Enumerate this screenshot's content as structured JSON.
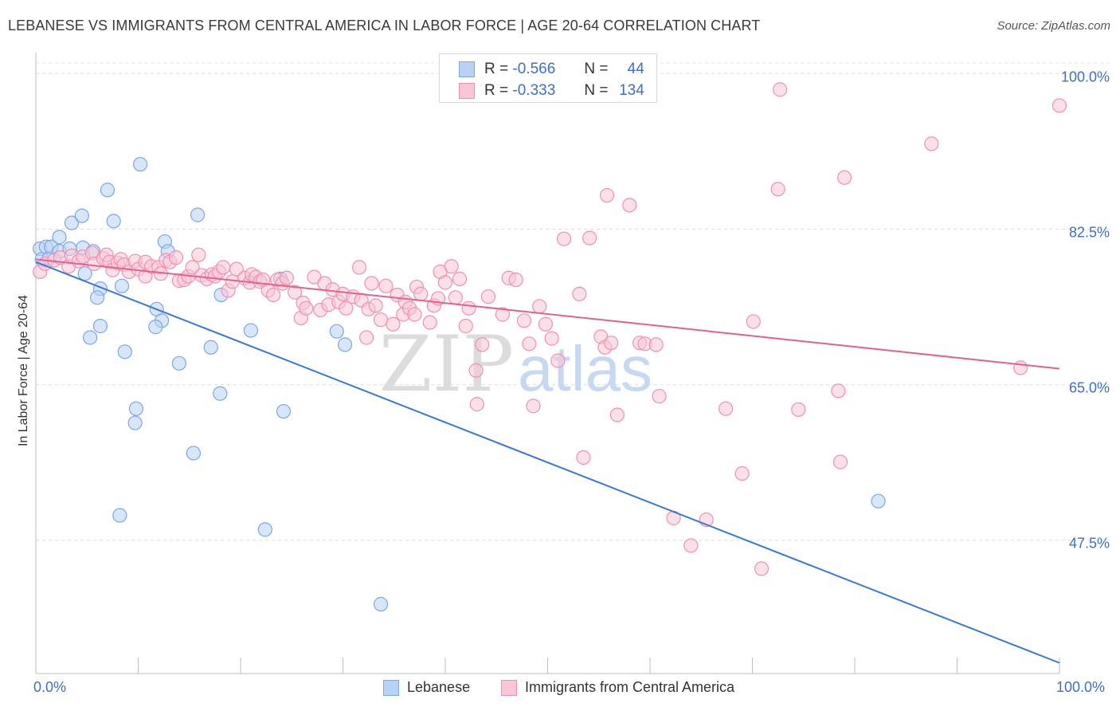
{
  "title": "LEBANESE VS IMMIGRANTS FROM CENTRAL AMERICA IN LABOR FORCE | AGE 20-64 CORRELATION CHART",
  "source": "Source: ZipAtlas.com",
  "watermark": {
    "part1": "ZIP",
    "part2": "atlas"
  },
  "legend": {
    "r_label": "R =",
    "n_label": "N =",
    "rows": [
      {
        "r": "-0.566",
        "n": "44",
        "color": "#7ba7e6",
        "fill": "#b8d2f5"
      },
      {
        "r": "-0.333",
        "n": "134",
        "color": "#f090b0",
        "fill": "#f8c6d6"
      }
    ]
  },
  "chart_data": {
    "type": "scatter",
    "title": "LEBANESE VS IMMIGRANTS FROM CENTRAL AMERICA IN LABOR FORCE | AGE 20-64 CORRELATION CHART",
    "xlabel": "",
    "ylabel": "In Labor Force | Age 20-64",
    "xlim": [
      0,
      100
    ],
    "ylim": [
      32.5,
      102
    ],
    "x_tick_labels": [
      "0.0%",
      "100.0%"
    ],
    "y_ticks": [
      47.5,
      65.0,
      82.5,
      100.0
    ],
    "y_tick_labels": [
      "47.5%",
      "65.0%",
      "82.5%",
      "100.0%"
    ],
    "grid": true,
    "legend_position": "top-center",
    "series": [
      {
        "name": "Lebanese",
        "color": "#3a78d4",
        "fill": "#b8d2f5",
        "trend": {
          "x": [
            0,
            100
          ],
          "y": [
            78.8,
            33.7
          ]
        },
        "points": [
          [
            0.4,
            80.3
          ],
          [
            0.6,
            79.1
          ],
          [
            1.0,
            80.5
          ],
          [
            1.3,
            79.2
          ],
          [
            1.5,
            80.5
          ],
          [
            2.3,
            80.0
          ],
          [
            2.3,
            81.6
          ],
          [
            3.3,
            80.3
          ],
          [
            3.5,
            83.2
          ],
          [
            4.6,
            80.4
          ],
          [
            4.5,
            84.0
          ],
          [
            5.6,
            80.0
          ],
          [
            4.8,
            77.5
          ],
          [
            6.3,
            75.8
          ],
          [
            6.0,
            74.8
          ],
          [
            6.3,
            71.6
          ],
          [
            5.3,
            70.3
          ],
          [
            7.0,
            86.9
          ],
          [
            7.6,
            83.4
          ],
          [
            8.4,
            76.1
          ],
          [
            8.7,
            68.7
          ],
          [
            9.8,
            62.3
          ],
          [
            9.7,
            60.7
          ],
          [
            8.2,
            50.3
          ],
          [
            10.2,
            89.8
          ],
          [
            12.6,
            81.1
          ],
          [
            12.9,
            80.0
          ],
          [
            11.8,
            73.5
          ],
          [
            12.3,
            72.2
          ],
          [
            11.7,
            71.5
          ],
          [
            14.0,
            67.4
          ],
          [
            15.4,
            57.3
          ],
          [
            15.8,
            84.1
          ],
          [
            17.1,
            69.2
          ],
          [
            18.1,
            75.1
          ],
          [
            18.0,
            64.0
          ],
          [
            21.0,
            71.1
          ],
          [
            22.4,
            48.7
          ],
          [
            24.2,
            62.0
          ],
          [
            23.9,
            76.9
          ],
          [
            29.4,
            71.0
          ],
          [
            30.2,
            69.5
          ],
          [
            33.7,
            40.3
          ],
          [
            82.3,
            51.9
          ]
        ]
      },
      {
        "name": "Immigrants from Central America",
        "color": "#e4608f",
        "fill": "#f8c6d6",
        "trend": {
          "x": [
            0,
            100
          ],
          "y": [
            79.1,
            66.8
          ]
        },
        "points": [
          [
            0.4,
            77.7
          ],
          [
            0.9,
            78.6
          ],
          [
            1.8,
            79.0
          ],
          [
            2.4,
            79.3
          ],
          [
            3.2,
            78.3
          ],
          [
            3.5,
            79.5
          ],
          [
            4.2,
            78.9
          ],
          [
            4.6,
            79.4
          ],
          [
            5.5,
            79.8
          ],
          [
            5.7,
            78.6
          ],
          [
            6.6,
            79.2
          ],
          [
            6.9,
            79.6
          ],
          [
            7.2,
            78.8
          ],
          [
            7.5,
            77.9
          ],
          [
            8.0,
            78.7
          ],
          [
            8.3,
            79.1
          ],
          [
            8.6,
            78.5
          ],
          [
            9.1,
            77.7
          ],
          [
            9.7,
            78.9
          ],
          [
            10.0,
            78.0
          ],
          [
            10.7,
            78.8
          ],
          [
            10.7,
            77.2
          ],
          [
            11.3,
            78.3
          ],
          [
            12.0,
            78.2
          ],
          [
            12.2,
            77.5
          ],
          [
            12.7,
            79.0
          ],
          [
            13.1,
            78.8
          ],
          [
            13.7,
            79.3
          ],
          [
            14.0,
            76.7
          ],
          [
            14.5,
            76.8
          ],
          [
            14.9,
            77.2
          ],
          [
            15.3,
            78.2
          ],
          [
            15.9,
            79.6
          ],
          [
            16.2,
            77.3
          ],
          [
            16.7,
            76.9
          ],
          [
            17.2,
            77.4
          ],
          [
            17.5,
            77.2
          ],
          [
            17.9,
            77.7
          ],
          [
            18.3,
            78.2
          ],
          [
            18.8,
            75.6
          ],
          [
            19.2,
            76.6
          ],
          [
            19.6,
            78.0
          ],
          [
            20.4,
            77.0
          ],
          [
            20.9,
            76.5
          ],
          [
            21.1,
            77.4
          ],
          [
            21.5,
            77.1
          ],
          [
            21.9,
            76.6
          ],
          [
            22.2,
            76.8
          ],
          [
            22.7,
            75.6
          ],
          [
            23.2,
            75.1
          ],
          [
            23.6,
            76.8
          ],
          [
            24.1,
            76.4
          ],
          [
            24.5,
            77.0
          ],
          [
            25.3,
            75.4
          ],
          [
            25.9,
            72.5
          ],
          [
            26.1,
            74.2
          ],
          [
            26.4,
            73.6
          ],
          [
            27.2,
            77.1
          ],
          [
            27.8,
            73.4
          ],
          [
            28.2,
            76.4
          ],
          [
            28.6,
            74.0
          ],
          [
            29.0,
            75.7
          ],
          [
            29.6,
            74.3
          ],
          [
            30.0,
            75.2
          ],
          [
            30.3,
            73.6
          ],
          [
            31.0,
            74.9
          ],
          [
            31.6,
            78.2
          ],
          [
            31.8,
            74.5
          ],
          [
            32.3,
            70.3
          ],
          [
            32.5,
            73.5
          ],
          [
            32.8,
            76.4
          ],
          [
            33.2,
            73.9
          ],
          [
            33.7,
            72.3
          ],
          [
            34.2,
            76.1
          ],
          [
            34.9,
            71.8
          ],
          [
            35.3,
            75.1
          ],
          [
            35.9,
            72.9
          ],
          [
            36.1,
            74.3
          ],
          [
            36.5,
            73.6
          ],
          [
            37.0,
            72.9
          ],
          [
            37.2,
            76.0
          ],
          [
            37.6,
            75.2
          ],
          [
            38.5,
            72.0
          ],
          [
            38.9,
            73.9
          ],
          [
            39.3,
            74.7
          ],
          [
            39.5,
            77.7
          ],
          [
            40.0,
            76.5
          ],
          [
            40.6,
            78.3
          ],
          [
            41.0,
            74.8
          ],
          [
            41.4,
            76.9
          ],
          [
            42.0,
            71.6
          ],
          [
            42.3,
            73.6
          ],
          [
            43.0,
            66.6
          ],
          [
            43.1,
            62.8
          ],
          [
            43.6,
            69.5
          ],
          [
            44.2,
            74.9
          ],
          [
            45.6,
            72.9
          ],
          [
            46.2,
            77.0
          ],
          [
            46.9,
            76.8
          ],
          [
            47.7,
            72.2
          ],
          [
            48.2,
            69.6
          ],
          [
            48.6,
            62.6
          ],
          [
            49.2,
            73.8
          ],
          [
            49.8,
            71.8
          ],
          [
            50.4,
            70.2
          ],
          [
            51.0,
            67.7
          ],
          [
            51.6,
            81.4
          ],
          [
            53.1,
            75.2
          ],
          [
            53.5,
            56.8
          ],
          [
            54.1,
            81.5
          ],
          [
            55.2,
            70.4
          ],
          [
            55.6,
            69.2
          ],
          [
            55.8,
            86.3
          ],
          [
            56.2,
            69.7
          ],
          [
            56.8,
            61.6
          ],
          [
            58.0,
            85.2
          ],
          [
            59.0,
            69.7
          ],
          [
            59.5,
            69.6
          ],
          [
            60.6,
            69.5
          ],
          [
            60.9,
            63.7
          ],
          [
            62.3,
            50.0
          ],
          [
            64.0,
            46.9
          ],
          [
            65.5,
            49.8
          ],
          [
            67.4,
            62.3
          ],
          [
            69.0,
            55.0
          ],
          [
            70.1,
            72.1
          ],
          [
            70.9,
            44.3
          ],
          [
            72.5,
            87.0
          ],
          [
            72.7,
            98.2
          ],
          [
            74.5,
            62.2
          ],
          [
            78.4,
            64.3
          ],
          [
            78.6,
            56.3
          ],
          [
            79.0,
            88.3
          ],
          [
            87.5,
            92.1
          ],
          [
            96.2,
            66.9
          ],
          [
            100.0,
            96.4
          ]
        ]
      }
    ]
  },
  "bottom_legend": [
    {
      "label": "Lebanese",
      "color": "#7ba7e6",
      "fill": "#b8d2f5"
    },
    {
      "label": "Immigrants from Central America",
      "color": "#f090b0",
      "fill": "#f8c6d6"
    }
  ],
  "x_axis": {
    "min_label": "0.0%",
    "max_label": "100.0%"
  }
}
